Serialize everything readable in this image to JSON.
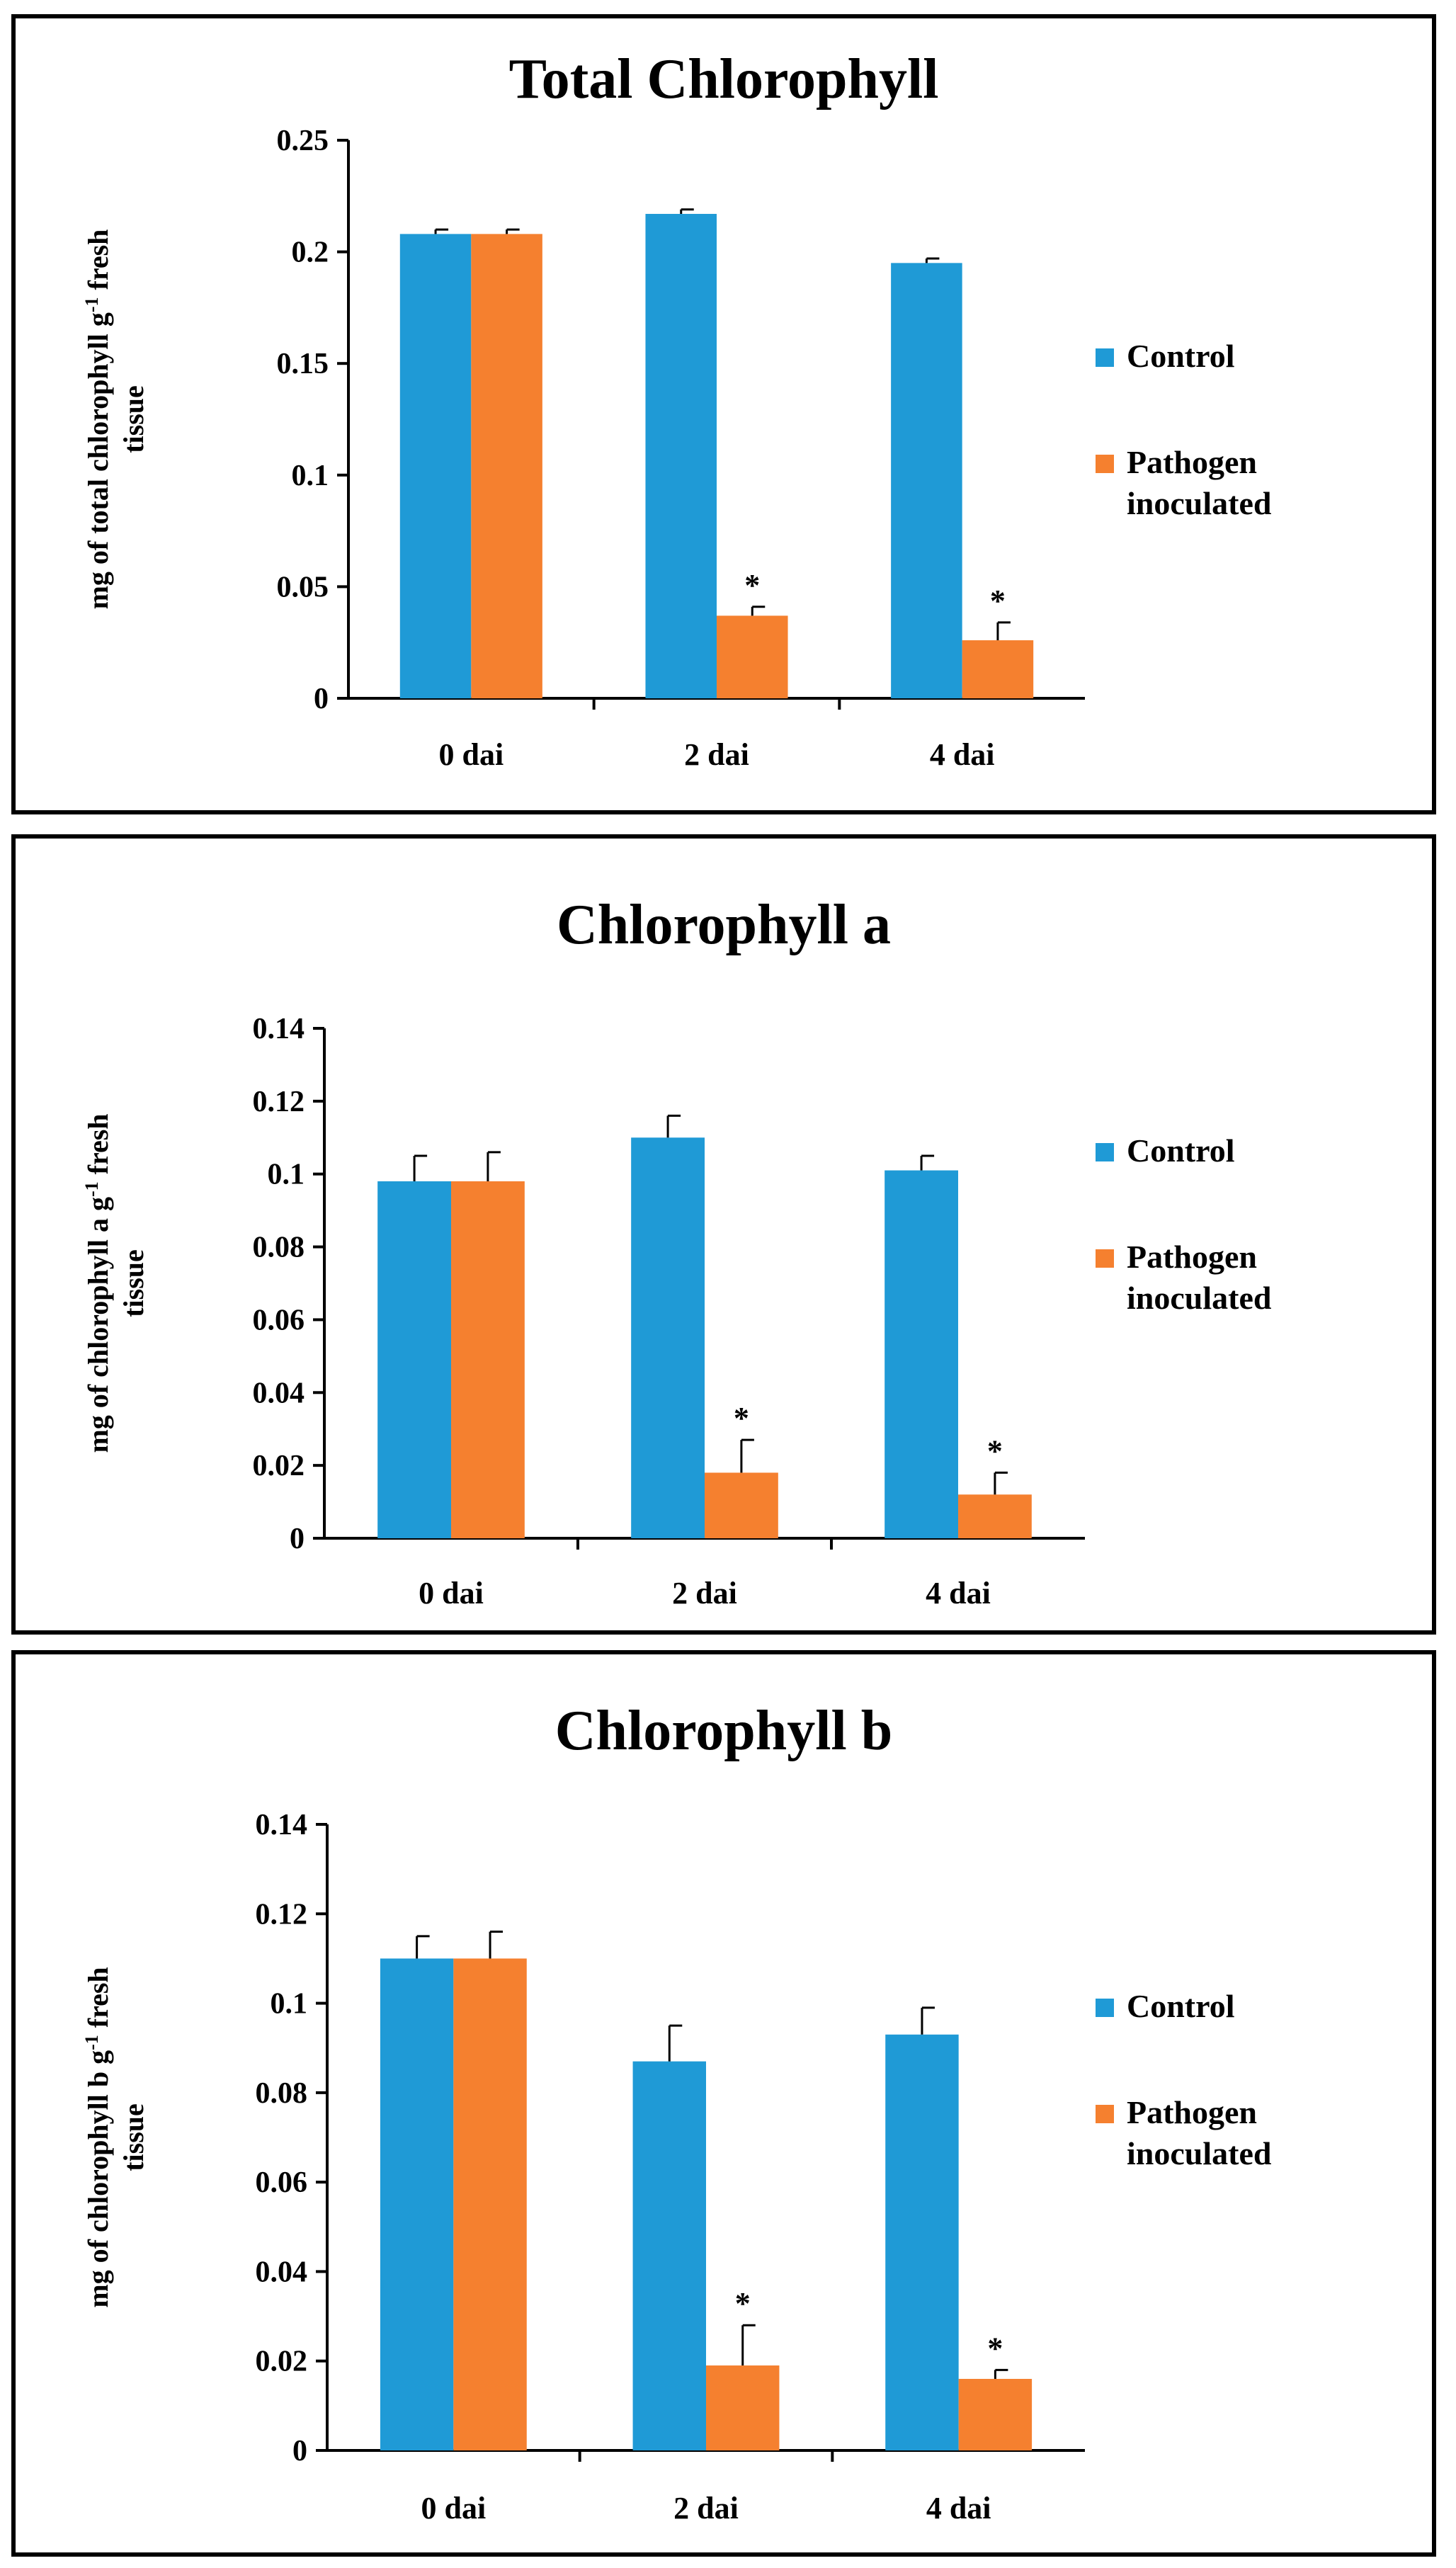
{
  "chart_data": [
    {
      "type": "bar",
      "title": "Total Chlorophyll",
      "ylabel": {
        "line1": "mg of total  chlorophyll g",
        "sup": "-1",
        "after": " fresh",
        "line2": "tissue"
      },
      "categories": [
        "0 dai",
        "2 dai",
        "4 dai"
      ],
      "yticks": [
        "0",
        "0.05",
        "0.1",
        "0.15",
        "0.2",
        "0.25"
      ],
      "ylim": [
        0,
        0.25
      ],
      "series": [
        {
          "name": "Control",
          "color": "#1f9ad6",
          "values": [
            0.208,
            0.217,
            0.195
          ],
          "errors": [
            0.002,
            0.002,
            0.002
          ],
          "marks": [
            "",
            "",
            ""
          ]
        },
        {
          "name": "Pathogen inoculated",
          "color": "#f5802f",
          "values": [
            0.208,
            0.037,
            0.026
          ],
          "errors": [
            0.002,
            0.004,
            0.008
          ],
          "marks": [
            "",
            "*",
            "*"
          ]
        }
      ],
      "legend": [
        {
          "lines": [
            "Control"
          ]
        },
        {
          "lines": [
            "Pathogen",
            "inoculated"
          ]
        }
      ]
    },
    {
      "type": "bar",
      "title": "Chlorophyll a",
      "ylabel": {
        "line1": "mg of chlorophyll  a g",
        "sup": "-1",
        "after": " fresh",
        "line2": "tissue"
      },
      "categories": [
        "0 dai",
        "2 dai",
        "4 dai"
      ],
      "yticks": [
        "0",
        "0.02",
        "0.04",
        "0.06",
        "0.08",
        "0.1",
        "0.12",
        "0.14"
      ],
      "ylim": [
        0,
        0.14
      ],
      "series": [
        {
          "name": "Control",
          "color": "#1f9ad6",
          "values": [
            0.098,
            0.11,
            0.101
          ],
          "errors": [
            0.007,
            0.006,
            0.004
          ],
          "marks": [
            "",
            "",
            ""
          ]
        },
        {
          "name": "Pathogen inoculated",
          "color": "#f5802f",
          "values": [
            0.098,
            0.018,
            0.012
          ],
          "errors": [
            0.008,
            0.009,
            0.006
          ],
          "marks": [
            "",
            "*",
            "*"
          ]
        }
      ],
      "legend": [
        {
          "lines": [
            "Control"
          ]
        },
        {
          "lines": [
            "Pathogen",
            "inoculated"
          ]
        }
      ]
    },
    {
      "type": "bar",
      "title": "Chlorophyll b",
      "ylabel": {
        "line1": "mg of chlorophyll b g",
        "sup": "-1",
        "after": " fresh",
        "line2": "tissue"
      },
      "categories": [
        "0 dai",
        "2 dai",
        "4 dai"
      ],
      "yticks": [
        "0",
        "0.02",
        "0.04",
        "0.06",
        "0.08",
        "0.1",
        "0.12",
        "0.14"
      ],
      "ylim": [
        0,
        0.14
      ],
      "series": [
        {
          "name": "Control",
          "color": "#1f9ad6",
          "values": [
            0.11,
            0.087,
            0.093
          ],
          "errors": [
            0.005,
            0.008,
            0.006
          ],
          "marks": [
            "",
            "",
            ""
          ]
        },
        {
          "name": "Pathogen inoculated",
          "color": "#f5802f",
          "values": [
            0.11,
            0.019,
            0.016
          ],
          "errors": [
            0.006,
            0.009,
            0.002
          ],
          "marks": [
            "",
            "*",
            "*"
          ]
        }
      ],
      "legend": [
        {
          "lines": [
            "Control"
          ]
        },
        {
          "lines": [
            "Pathogen",
            "inoculated"
          ]
        }
      ]
    }
  ]
}
